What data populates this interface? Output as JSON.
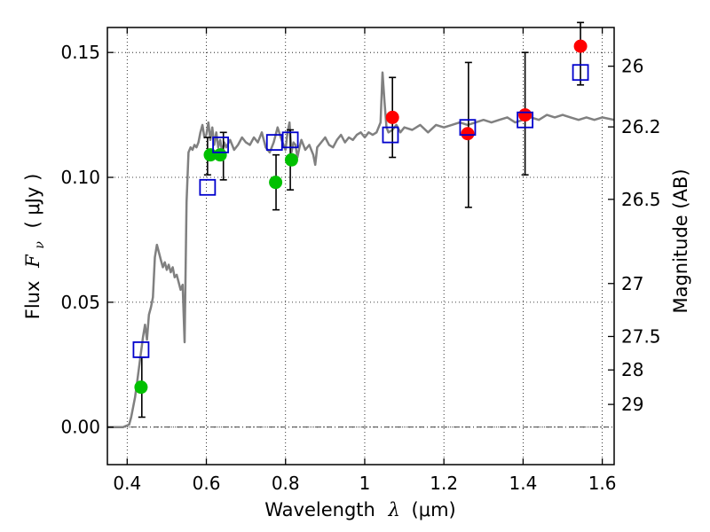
{
  "chart_data": {
    "type": "scatter",
    "xlabel_prefix": "Wavelength",
    "xlabel_symbol": "λ",
    "xlabel_unit": "(μm)",
    "ylabel_prefix": "Flux",
    "ylabel_symbol": "F",
    "ylabel_sub": "ν",
    "ylabel_unit": "( μJy )",
    "y2label": "Magnitude (AB)",
    "xlim": [
      0.35,
      1.63
    ],
    "ylim": [
      -0.015,
      0.16
    ],
    "xticks": [
      0.4,
      0.6,
      0.8,
      1.0,
      1.2,
      1.4,
      1.6
    ],
    "xtick_labels": [
      "0.4",
      "0.6",
      "0.8",
      "1",
      "1.2",
      "1.4",
      "1.6"
    ],
    "yticks": [
      0.0,
      0.05,
      0.1,
      0.15
    ],
    "ytick_labels": [
      "0.00",
      "0.05",
      "0.10",
      "0.15"
    ],
    "y2ticks": [
      {
        "label": "26",
        "flux": 0.1445
      },
      {
        "label": "26.2",
        "flux": 0.1202
      },
      {
        "label": "26.5",
        "flux": 0.0912
      },
      {
        "label": "27",
        "flux": 0.0575
      },
      {
        "label": "27.5",
        "flux": 0.0363
      },
      {
        "label": "28",
        "flux": 0.0229
      },
      {
        "label": "29",
        "flux": 0.0091
      }
    ],
    "grid": true,
    "colors": {
      "model": "#808080",
      "green": "#00c000",
      "red": "#ff0000",
      "box": "#0000cc",
      "errorbar": "#000000"
    },
    "model_sed": {
      "x": [
        0.35,
        0.39,
        0.405,
        0.41,
        0.415,
        0.42,
        0.425,
        0.43,
        0.435,
        0.44,
        0.445,
        0.45,
        0.455,
        0.46,
        0.465,
        0.47,
        0.475,
        0.48,
        0.485,
        0.49,
        0.495,
        0.5,
        0.505,
        0.51,
        0.515,
        0.52,
        0.525,
        0.53,
        0.535,
        0.54,
        0.545,
        0.55,
        0.555,
        0.56,
        0.565,
        0.57,
        0.575,
        0.58,
        0.585,
        0.59,
        0.595,
        0.6,
        0.605,
        0.61,
        0.615,
        0.62,
        0.625,
        0.63,
        0.635,
        0.64,
        0.645,
        0.65,
        0.66,
        0.67,
        0.68,
        0.69,
        0.7,
        0.71,
        0.72,
        0.73,
        0.74,
        0.75,
        0.76,
        0.77,
        0.78,
        0.79,
        0.8,
        0.805,
        0.81,
        0.815,
        0.82,
        0.825,
        0.83,
        0.835,
        0.84,
        0.85,
        0.86,
        0.87,
        0.875,
        0.88,
        0.89,
        0.9,
        0.91,
        0.92,
        0.93,
        0.94,
        0.95,
        0.96,
        0.97,
        0.98,
        0.99,
        1.0,
        1.01,
        1.02,
        1.03,
        1.04,
        1.045,
        1.05,
        1.055,
        1.06,
        1.07,
        1.08,
        1.09,
        1.1,
        1.12,
        1.14,
        1.16,
        1.18,
        1.2,
        1.22,
        1.24,
        1.26,
        1.28,
        1.3,
        1.32,
        1.34,
        1.36,
        1.38,
        1.4,
        1.42,
        1.44,
        1.46,
        1.48,
        1.5,
        1.52,
        1.54,
        1.56,
        1.58,
        1.6,
        1.63
      ],
      "y": [
        0.0,
        0.0,
        0.001,
        0.004,
        0.008,
        0.012,
        0.018,
        0.024,
        0.03,
        0.036,
        0.041,
        0.035,
        0.045,
        0.048,
        0.052,
        0.068,
        0.073,
        0.07,
        0.067,
        0.064,
        0.066,
        0.063,
        0.065,
        0.062,
        0.064,
        0.06,
        0.061,
        0.058,
        0.055,
        0.057,
        0.034,
        0.09,
        0.11,
        0.112,
        0.111,
        0.113,
        0.112,
        0.114,
        0.118,
        0.121,
        0.116,
        0.117,
        0.122,
        0.115,
        0.12,
        0.113,
        0.118,
        0.112,
        0.115,
        0.11,
        0.114,
        0.112,
        0.115,
        0.111,
        0.113,
        0.116,
        0.114,
        0.113,
        0.116,
        0.114,
        0.118,
        0.112,
        0.11,
        0.114,
        0.12,
        0.115,
        0.111,
        0.118,
        0.122,
        0.11,
        0.114,
        0.113,
        0.108,
        0.112,
        0.115,
        0.111,
        0.113,
        0.109,
        0.105,
        0.112,
        0.114,
        0.116,
        0.113,
        0.112,
        0.115,
        0.117,
        0.114,
        0.116,
        0.115,
        0.117,
        0.118,
        0.116,
        0.118,
        0.117,
        0.118,
        0.122,
        0.142,
        0.13,
        0.12,
        0.118,
        0.119,
        0.121,
        0.118,
        0.12,
        0.119,
        0.121,
        0.118,
        0.121,
        0.12,
        0.121,
        0.122,
        0.121,
        0.122,
        0.123,
        0.122,
        0.123,
        0.124,
        0.122,
        0.123,
        0.124,
        0.123,
        0.125,
        0.124,
        0.125,
        0.124,
        0.123,
        0.124,
        0.123,
        0.124,
        0.123
      ]
    },
    "green_points": [
      {
        "x": 0.435,
        "y": 0.016
      },
      {
        "x": 0.61,
        "y": 0.109
      },
      {
        "x": 0.635,
        "y": 0.109
      },
      {
        "x": 0.775,
        "y": 0.098
      },
      {
        "x": 0.815,
        "y": 0.107
      }
    ],
    "red_points": [
      {
        "x": 1.07,
        "y": 0.124
      },
      {
        "x": 1.26,
        "y": 0.1175
      },
      {
        "x": 1.405,
        "y": 0.125
      },
      {
        "x": 1.545,
        "y": 0.1525
      }
    ],
    "boxes": [
      {
        "x": 0.435,
        "y": 0.031
      },
      {
        "x": 0.603,
        "y": 0.096
      },
      {
        "x": 0.636,
        "y": 0.113
      },
      {
        "x": 0.772,
        "y": 0.114
      },
      {
        "x": 0.812,
        "y": 0.115
      },
      {
        "x": 1.065,
        "y": 0.117
      },
      {
        "x": 1.26,
        "y": 0.12
      },
      {
        "x": 1.405,
        "y": 0.123
      },
      {
        "x": 1.545,
        "y": 0.142
      }
    ],
    "errorbars": [
      {
        "x": 0.437,
        "lo": 0.004,
        "hi": 0.028
      },
      {
        "x": 0.603,
        "lo": 0.101,
        "hi": 0.116
      },
      {
        "x": 0.643,
        "lo": 0.099,
        "hi": 0.118
      },
      {
        "x": 0.776,
        "lo": 0.087,
        "hi": 0.109
      },
      {
        "x": 0.812,
        "lo": 0.095,
        "hi": 0.119
      },
      {
        "x": 1.07,
        "lo": 0.108,
        "hi": 0.14
      },
      {
        "x": 1.262,
        "lo": 0.088,
        "hi": 0.146
      },
      {
        "x": 1.405,
        "lo": 0.101,
        "hi": 0.15
      },
      {
        "x": 1.545,
        "lo": 0.137,
        "hi": 0.162
      }
    ]
  }
}
